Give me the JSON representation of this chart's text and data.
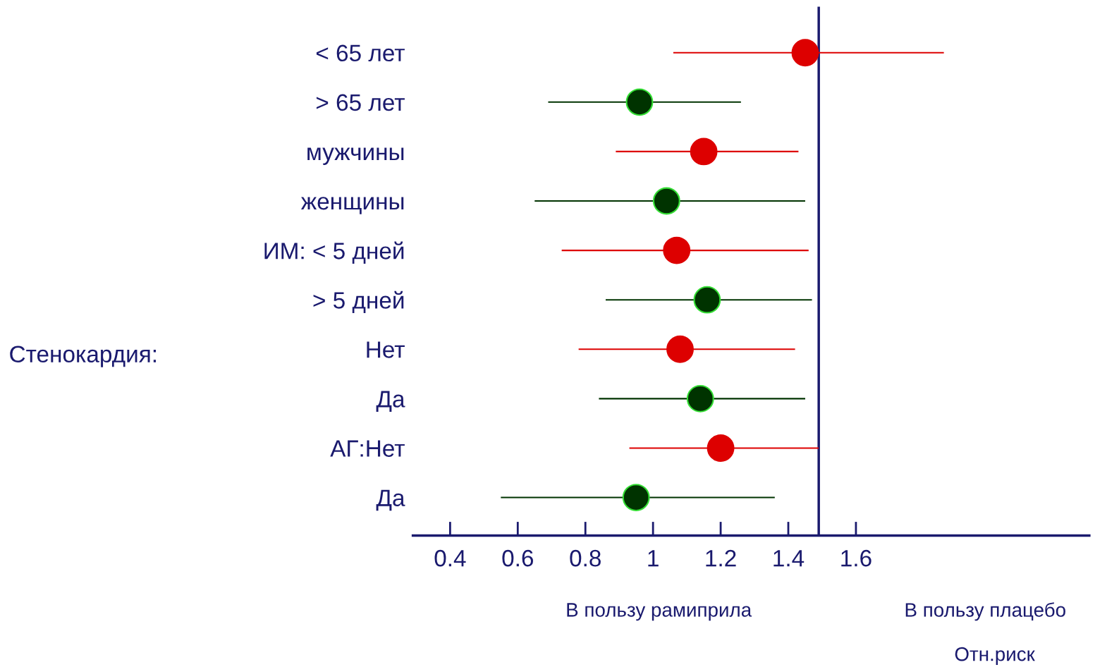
{
  "chart_data": {
    "type": "scatter",
    "orientation": "horizontal",
    "xlabel": "Отн.риск",
    "categories": [
      "< 65 лет",
      "> 65 лет",
      "мужчины",
      "женщины",
      "ИМ: < 5 дней",
      "> 5 дней",
      "Нет",
      "Да",
      "АГ:Нет",
      "Да"
    ],
    "series": [
      {
        "color": "#dd0000",
        "values": [
          1.45,
          null,
          1.15,
          null,
          1.07,
          null,
          1.08,
          null,
          1.2,
          null
        ],
        "errors": [
          [
            1.06,
            1.86
          ],
          null,
          [
            0.89,
            1.43
          ],
          null,
          [
            0.73,
            1.46
          ],
          null,
          [
            0.78,
            1.42
          ],
          null,
          [
            0.93,
            1.49
          ],
          null
        ]
      },
      {
        "color": "#003300",
        "values": [
          null,
          0.96,
          null,
          1.04,
          null,
          1.16,
          null,
          1.14,
          null,
          0.95
        ],
        "errors": [
          null,
          [
            0.69,
            1.26
          ],
          null,
          [
            0.65,
            1.45
          ],
          null,
          [
            0.86,
            1.47
          ],
          null,
          [
            0.84,
            1.45
          ],
          null,
          [
            0.55,
            1.36
          ]
        ]
      }
    ],
    "xlim": [
      0.29,
      2.29
    ],
    "xticks": [
      0.4,
      0.6,
      0.8,
      1,
      1.2,
      1.4,
      1.6
    ],
    "ref_lines": [
      {
        "axis": "x",
        "value": 1.49,
        "color": "#1a1a6e"
      }
    ],
    "annotations": [
      "Стенокардия:",
      "В пользу рамиприла",
      "В пользу плацебо"
    ],
    "marker": "circle",
    "grid": false,
    "legend": false
  }
}
